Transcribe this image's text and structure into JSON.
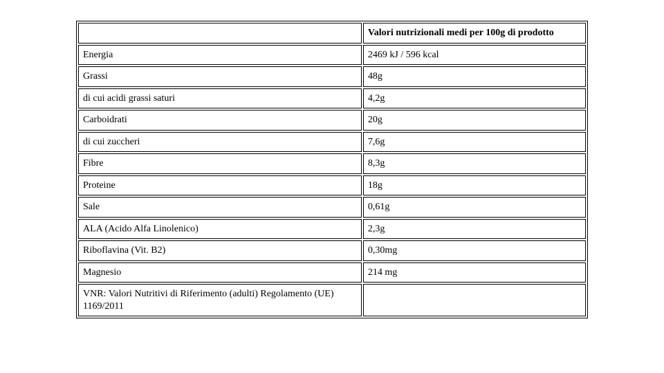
{
  "table": {
    "type": "table",
    "background_color": "#ffffff",
    "border_color": "#000000",
    "text_color": "#000000",
    "font_family": "Times New Roman",
    "font_size_pt": 11,
    "header_font_weight": "bold",
    "columns": [
      {
        "key": "label",
        "header": "",
        "width_pct": 56,
        "align": "left"
      },
      {
        "key": "value",
        "header": "Valori nutrizionali medi per 100g di prodotto",
        "width_pct": 44,
        "align": "left"
      }
    ],
    "rows": [
      {
        "label": "Energia",
        "value": "2469 kJ / 596 kcal"
      },
      {
        "label": "Grassi",
        "value": "48g"
      },
      {
        "label": "di cui acidi grassi saturi",
        "value": "4,2g"
      },
      {
        "label": "Carboidrati",
        "value": "20g"
      },
      {
        "label": "di cui zuccheri",
        "value": "7,6g"
      },
      {
        "label": "Fibre",
        "value": "8,3g"
      },
      {
        "label": "Proteine",
        "value": "18g"
      },
      {
        "label": "Sale",
        "value": "0,61g"
      },
      {
        "label": "ALA (Acido Alfa Linolenico)",
        "value": "2,3g"
      },
      {
        "label": "Riboflavina (Vit. B2)",
        "value": "0,30mg"
      },
      {
        "label": "Magnesio",
        "value": "214 mg"
      },
      {
        "label": "VNR: Valori Nutritivi di Riferimento (adulti) Regolamento (UE) 1169/2011",
        "value": ""
      }
    ]
  }
}
